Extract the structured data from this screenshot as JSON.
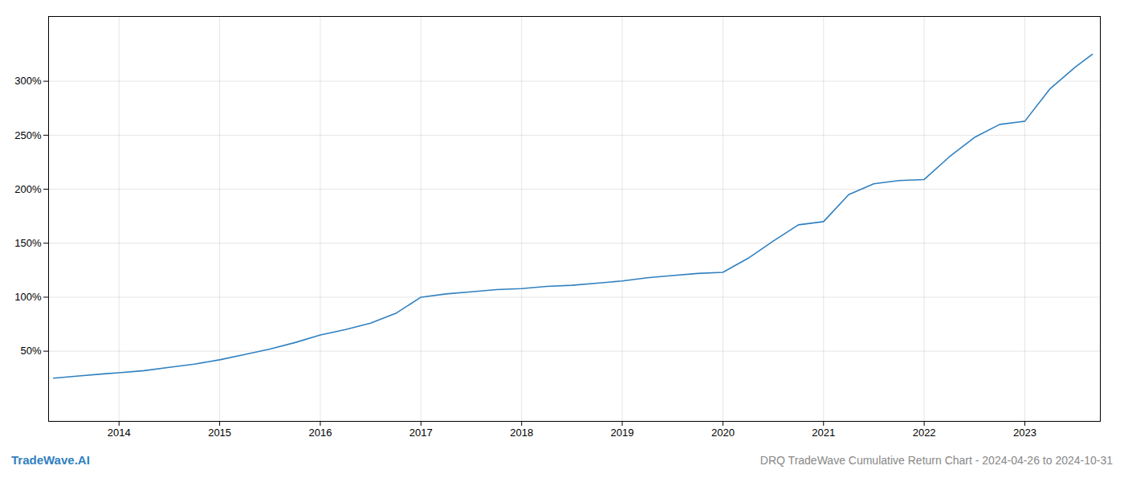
{
  "chart_data": {
    "type": "line",
    "title": "DRQ TradeWave Cumulative Return Chart - 2024-04-26 to 2024-10-31",
    "annotations": [
      "TradeWave.AI"
    ],
    "x": [
      2013.35,
      2013.6,
      2013.85,
      2014.0,
      2014.25,
      2014.5,
      2014.75,
      2015.0,
      2015.25,
      2015.5,
      2015.75,
      2016.0,
      2016.25,
      2016.5,
      2016.75,
      2017.0,
      2017.25,
      2017.5,
      2017.75,
      2018.0,
      2018.25,
      2018.5,
      2018.75,
      2019.0,
      2019.25,
      2019.5,
      2019.75,
      2020.0,
      2020.25,
      2020.5,
      2020.75,
      2021.0,
      2021.25,
      2021.5,
      2021.75,
      2022.0,
      2022.25,
      2022.5,
      2022.75,
      2023.0,
      2023.25,
      2023.5,
      2023.67
    ],
    "values": [
      25,
      27,
      29,
      30,
      32,
      35,
      38,
      42,
      47,
      52,
      58,
      65,
      70,
      76,
      85,
      100,
      103,
      105,
      107,
      108,
      110,
      111,
      113,
      115,
      118,
      120,
      122,
      123,
      136,
      152,
      167,
      170,
      195,
      205,
      208,
      209,
      230,
      248,
      260,
      263,
      293,
      313,
      325
    ],
    "color": "#3080c0",
    "xlim": [
      2013.3,
      2023.75
    ],
    "xticks": [
      2014,
      2015,
      2016,
      2017,
      2018,
      2019,
      2020,
      2021,
      2022,
      2023
    ],
    "ylim": [
      -15,
      360
    ],
    "yticks": [
      {
        "value": 50,
        "label": "50%"
      },
      {
        "value": 100,
        "label": "100%"
      },
      {
        "value": 150,
        "label": "150%"
      },
      {
        "value": 200,
        "label": "200%"
      },
      {
        "value": 250,
        "label": "250%"
      },
      {
        "value": 300,
        "label": "300%"
      }
    ],
    "grid": true
  }
}
